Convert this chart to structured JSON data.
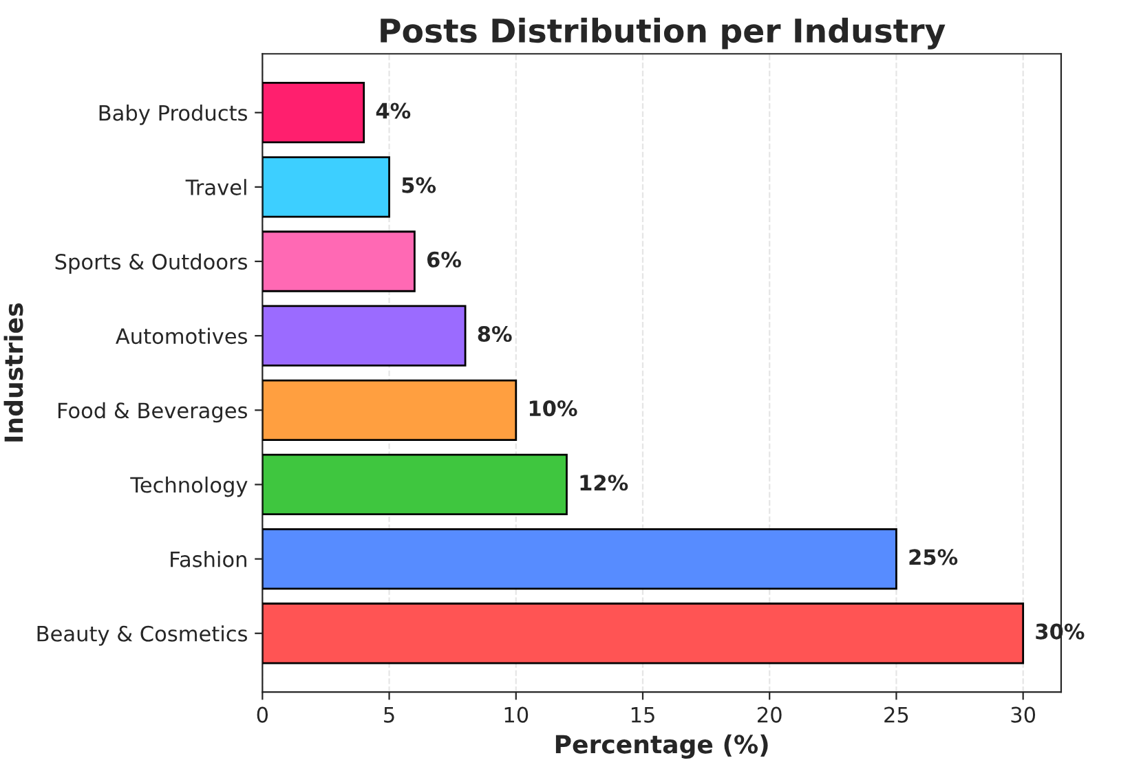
{
  "chart_data": {
    "type": "bar",
    "orientation": "horizontal",
    "title": "Posts Distribution per Industry",
    "xlabel": "Percentage (%)",
    "ylabel": "Industries",
    "categories": [
      "Baby Products",
      "Travel",
      "Sports & Outdoors",
      "Automotives",
      "Food & Beverages",
      "Technology",
      "Fashion",
      "Beauty & Cosmetics"
    ],
    "values": [
      4,
      5,
      6,
      8,
      10,
      12,
      25,
      30
    ],
    "colors": [
      "#ff1f6e",
      "#3dcfff",
      "#ff69b4",
      "#9b6bff",
      "#ff9f40",
      "#3fc63f",
      "#578cff",
      "#ff5454"
    ],
    "value_labels": [
      "4%",
      "5%",
      "6%",
      "8%",
      "10%",
      "12%",
      "25%",
      "30%"
    ],
    "xlim": [
      0,
      31.5
    ],
    "xticks": [
      0,
      5,
      10,
      15,
      20,
      25,
      30
    ],
    "grid": "x"
  }
}
